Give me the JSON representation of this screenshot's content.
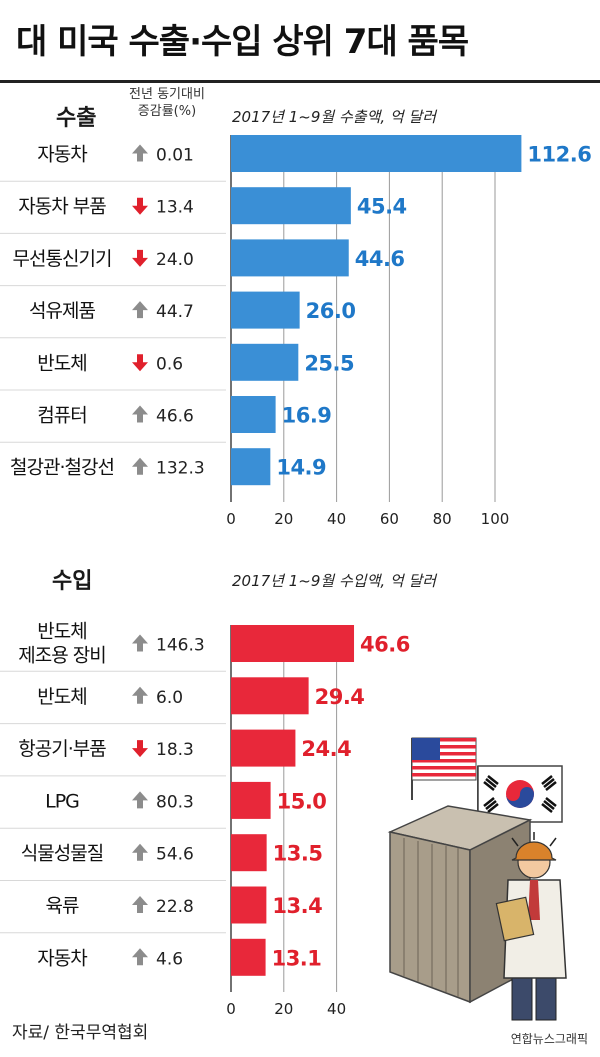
{
  "title": "대 미국 수출·수입 상위 7대 품목",
  "export_label": "수출",
  "import_label": "수입",
  "change_header": [
    "전년 동기대비",
    "증감률(%)"
  ],
  "source": "자료/ 한국무역협회",
  "credit": "연합뉴스그래픽",
  "colors": {
    "export": "#3a8fd6",
    "import": "#e8283a",
    "export_value": "#1f78c8",
    "import_value": "#e0202c",
    "up_arrow": "#8c8c8c",
    "down_arrow": "#e0202c"
  },
  "chart_data": [
    {
      "type": "bar",
      "orientation": "horizontal",
      "title": "2017년 1~9월 수출액, 억 달러",
      "categories": [
        [
          "자동차"
        ],
        [
          "자동차 부품"
        ],
        [
          "무선통신기기"
        ],
        [
          "석유제품"
        ],
        [
          "반도체"
        ],
        [
          "컴퓨터"
        ],
        [
          "철강관·철강선"
        ]
      ],
      "values": [
        112.6,
        45.4,
        44.6,
        26.0,
        25.5,
        16.9,
        14.9
      ],
      "value_labels": [
        "112.6",
        "45.4",
        "44.6",
        "26.0",
        "25.5",
        "16.9",
        "14.9"
      ],
      "change_direction": [
        "up",
        "down",
        "down",
        "up",
        "down",
        "up",
        "up"
      ],
      "change_values": [
        "0.01",
        "13.4",
        "24.0",
        "44.7",
        "0.6",
        "46.6",
        "132.3"
      ],
      "xlim": [
        0,
        110
      ],
      "xticks": [
        "0",
        "20",
        "40",
        "60",
        "80",
        "100"
      ],
      "xtick_values": [
        0,
        20,
        40,
        60,
        80,
        100
      ]
    },
    {
      "type": "bar",
      "orientation": "horizontal",
      "title": "2017년 1~9월 수입액, 억 달러",
      "categories": [
        [
          "반도체",
          "제조용 장비"
        ],
        [
          "반도체"
        ],
        [
          "항공기·부품"
        ],
        [
          "LPG"
        ],
        [
          "식물성물질"
        ],
        [
          "육류"
        ],
        [
          "자동차"
        ]
      ],
      "values": [
        46.6,
        29.4,
        24.4,
        15.0,
        13.5,
        13.4,
        13.1
      ],
      "value_labels": [
        "46.6",
        "29.4",
        "24.4",
        "15.0",
        "13.5",
        "13.4",
        "13.1"
      ],
      "change_direction": [
        "up",
        "up",
        "down",
        "up",
        "up",
        "up",
        "up"
      ],
      "change_values": [
        "146.3",
        "6.0",
        "18.3",
        "80.3",
        "54.6",
        "22.8",
        "4.6"
      ],
      "xlim": [
        0,
        110
      ],
      "xticks": [
        "0",
        "20",
        "40"
      ],
      "xtick_values": [
        0,
        20,
        40
      ]
    }
  ]
}
